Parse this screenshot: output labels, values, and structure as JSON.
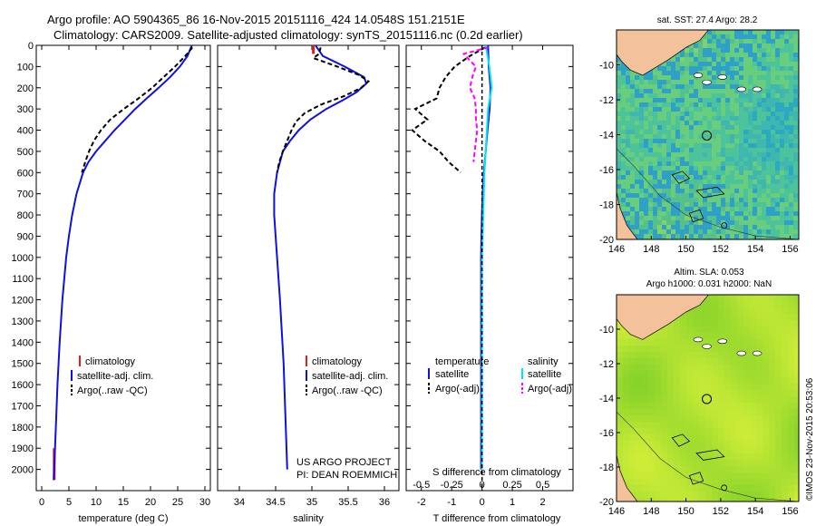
{
  "header": {
    "line1": "Argo profile: AO 5904365_86 16-Nov-2015 20151116_424 14.0548S 151.2151E",
    "line2": "Climatology: CARS2009. Satellite-adjusted climatology: synTS_20151116.nc (0.2d earlier)"
  },
  "credit": "US ARGO PROJECT",
  "pi": "PI: DEAN ROEMMICH",
  "stamp": "©IMOS 23-Nov-2015 20:53:06",
  "colors": {
    "climatology": "#e02020",
    "satellite": "#1010e0",
    "argo": "#000000",
    "s_satellite": "#00e5ee",
    "s_argo": "#ff00ff",
    "land": "#f3c29b"
  },
  "chart_data": [
    {
      "type": "line",
      "name": "temperature-profile",
      "xlabel": "temperature (deg C)",
      "ylabel": "",
      "xlim": [
        -1,
        31
      ],
      "ylim": [
        2100,
        0
      ],
      "xticks": [
        0,
        5,
        10,
        15,
        20,
        25,
        30
      ],
      "yticks": [
        0,
        100,
        200,
        300,
        400,
        500,
        600,
        700,
        800,
        900,
        1000,
        1100,
        1200,
        1300,
        1400,
        1500,
        1600,
        1700,
        1800,
        1900,
        2000
      ],
      "legend": [
        "climatology",
        "satellite-adj. clim.",
        "Argo(..raw -QC)"
      ],
      "series": [
        {
          "name": "climatology",
          "depth": [
            1900,
            2050
          ],
          "values": [
            2.3,
            2.3
          ],
          "style": "bar"
        },
        {
          "name": "satellite-adj. clim.",
          "depth": [
            0,
            50,
            100,
            150,
            200,
            250,
            300,
            350,
            400,
            450,
            500,
            550,
            600,
            700,
            800,
            900,
            1000,
            1200,
            1400,
            1600,
            1800,
            2000,
            2050
          ],
          "values": [
            27.6,
            26.8,
            25.4,
            23.6,
            21.5,
            19.3,
            17.2,
            15.3,
            13.4,
            11.7,
            10.0,
            8.6,
            7.6,
            6.4,
            5.6,
            5.0,
            4.5,
            3.8,
            3.3,
            2.9,
            2.6,
            2.3,
            2.2
          ]
        },
        {
          "name": "Argo(..raw -QC)",
          "depth": [
            10,
            50,
            100,
            150,
            200,
            250,
            300,
            350,
            400,
            450,
            500,
            550,
            600
          ],
          "values": [
            27.7,
            26.4,
            24.5,
            22.4,
            20.3,
            17.8,
            15.1,
            12.6,
            10.9,
            9.6,
            8.7,
            8.0,
            7.4
          ]
        }
      ]
    },
    {
      "type": "line",
      "name": "salinity-profile",
      "xlabel": "salinity",
      "xlim": [
        33.7,
        36.2
      ],
      "ylim": [
        2100,
        0
      ],
      "xticks": [
        34,
        34.5,
        35,
        35.5,
        36
      ],
      "legend": [
        "climatology",
        "satellite-adj. clim.",
        "Argo(..raw -QC)"
      ],
      "series": [
        {
          "name": "climatology",
          "depth": [
            0,
            40
          ],
          "values": [
            35.02,
            35.02
          ],
          "style": "bar"
        },
        {
          "name": "satellite-adj. clim.",
          "depth": [
            0,
            50,
            100,
            150,
            180,
            220,
            260,
            300,
            350,
            400,
            450,
            500,
            600,
            700,
            800,
            1000,
            1200,
            1500,
            1800,
            2000
          ],
          "values": [
            35.05,
            35.15,
            35.45,
            35.72,
            35.75,
            35.62,
            35.42,
            35.2,
            34.98,
            34.82,
            34.7,
            34.6,
            34.52,
            34.48,
            34.48,
            34.52,
            34.56,
            34.61,
            34.64,
            34.66
          ]
        },
        {
          "name": "Argo(..raw -QC)",
          "depth": [
            10,
            40,
            60,
            100,
            140,
            170,
            200,
            240,
            280,
            320,
            360,
            400,
            450,
            500,
            550,
            600
          ],
          "values": [
            35.12,
            35.1,
            35.02,
            35.35,
            35.65,
            35.78,
            35.68,
            35.44,
            35.12,
            34.9,
            34.78,
            34.72,
            34.66,
            34.6,
            34.55,
            34.52
          ]
        }
      ]
    },
    {
      "type": "line",
      "name": "difference-profile",
      "xlabel": "T difference from climatology",
      "s_label": "S difference from climatology",
      "xlim": [
        -2.5,
        3
      ],
      "ylim": [
        2100,
        0
      ],
      "xticks": [
        -2,
        -1,
        0,
        1,
        2
      ],
      "s_ticks": [
        "-0.5",
        "-0.25",
        "0",
        "0.25",
        "0.5"
      ],
      "legend_t": [
        "temperature",
        "satellite",
        "Argo(-adj)"
      ],
      "legend_s": [
        "salinity",
        "satellite",
        "Argo(-adj)"
      ],
      "series": [
        {
          "name": "temperature satellite",
          "depth": [
            0,
            100,
            200,
            300,
            400,
            500,
            600,
            700,
            800,
            900,
            1000,
            1500,
            2000
          ],
          "values": [
            0.2,
            0.22,
            0.28,
            0.25,
            0.18,
            0.12,
            0.06,
            0.02,
            0.0,
            -0.02,
            -0.03,
            -0.03,
            -0.03
          ]
        },
        {
          "name": "temperature Argo(-adj)",
          "depth": [
            10,
            50,
            100,
            150,
            200,
            250,
            300,
            350,
            400,
            450,
            500,
            550,
            600
          ],
          "values": [
            0.1,
            -0.4,
            -0.9,
            -1.2,
            -1.4,
            -1.5,
            -2.2,
            -1.8,
            -2.3,
            -1.9,
            -1.4,
            -1.1,
            -0.7
          ]
        },
        {
          "name": "salinity satellite",
          "depth": [
            0,
            100,
            200,
            300,
            400,
            500,
            600,
            800,
            1000,
            1500,
            2000
          ],
          "values": [
            0.03,
            0.06,
            0.08,
            0.05,
            0.04,
            0.03,
            0.02,
            0.01,
            0.0,
            0.0,
            0.0
          ]
        },
        {
          "name": "salinity Argo(-adj)",
          "depth": [
            10,
            40,
            60,
            100,
            150,
            200,
            250,
            300,
            350,
            400,
            450,
            500,
            550
          ],
          "values": [
            0.05,
            -0.15,
            -0.12,
            -0.05,
            -0.08,
            -0.1,
            -0.06,
            -0.05,
            -0.05,
            -0.04,
            -0.05,
            -0.06,
            -0.07
          ]
        }
      ]
    },
    {
      "type": "heatmap",
      "name": "sst-map",
      "title": "sat. SST: 27.4 Argo: 28.2",
      "xticks": [
        "146",
        "148",
        "150",
        "152",
        "154",
        "156"
      ],
      "yticks": [
        "-10",
        "-12",
        "-14",
        "-16",
        "-18",
        "-20"
      ],
      "xlim": [
        146,
        156.5
      ],
      "ylim": [
        -20,
        -8
      ]
    },
    {
      "type": "heatmap",
      "name": "sla-map",
      "title1": "Altim. SLA: 0.053",
      "title2": "Argo h1000: 0.031 h2000: NaN",
      "xticks": [
        "146",
        "148",
        "150",
        "152",
        "154",
        "156"
      ],
      "yticks": [
        "-10",
        "-12",
        "-14",
        "-16",
        "-18",
        "-20"
      ],
      "xlim": [
        146,
        156.5
      ],
      "ylim": [
        -20,
        -8
      ]
    }
  ]
}
